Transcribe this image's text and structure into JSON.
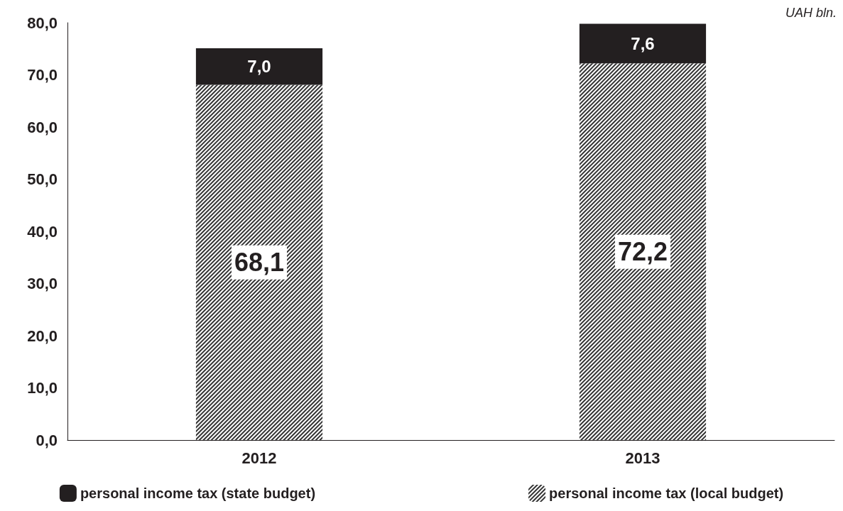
{
  "chart_data": {
    "type": "bar",
    "stacked": true,
    "categories": [
      "2012",
      "2013"
    ],
    "series": [
      {
        "name": "personal income tax (local budget)",
        "color": "#333333",
        "values": [
          68.1,
          72.2
        ],
        "value_labels": [
          "68,1",
          "72,2"
        ]
      },
      {
        "name": "personal income tax (state budget)",
        "color": "#231f20",
        "values": [
          7.0,
          7.6
        ],
        "value_labels": [
          "7,0",
          "7,6"
        ]
      }
    ],
    "ylim": [
      0,
      80
    ],
    "yticks": [
      {
        "value": 0,
        "label": "0,0"
      },
      {
        "value": 10,
        "label": "10,0"
      },
      {
        "value": 20,
        "label": "20,0"
      },
      {
        "value": 30,
        "label": "30,0"
      },
      {
        "value": 40,
        "label": "40,0"
      },
      {
        "value": 50,
        "label": "50,0"
      },
      {
        "value": 60,
        "label": "60,0"
      },
      {
        "value": 70,
        "label": "70,0"
      },
      {
        "value": 80,
        "label": "80,0"
      }
    ],
    "annotations": [
      "UAH bln."
    ],
    "grid": false,
    "legend": "bottom"
  }
}
